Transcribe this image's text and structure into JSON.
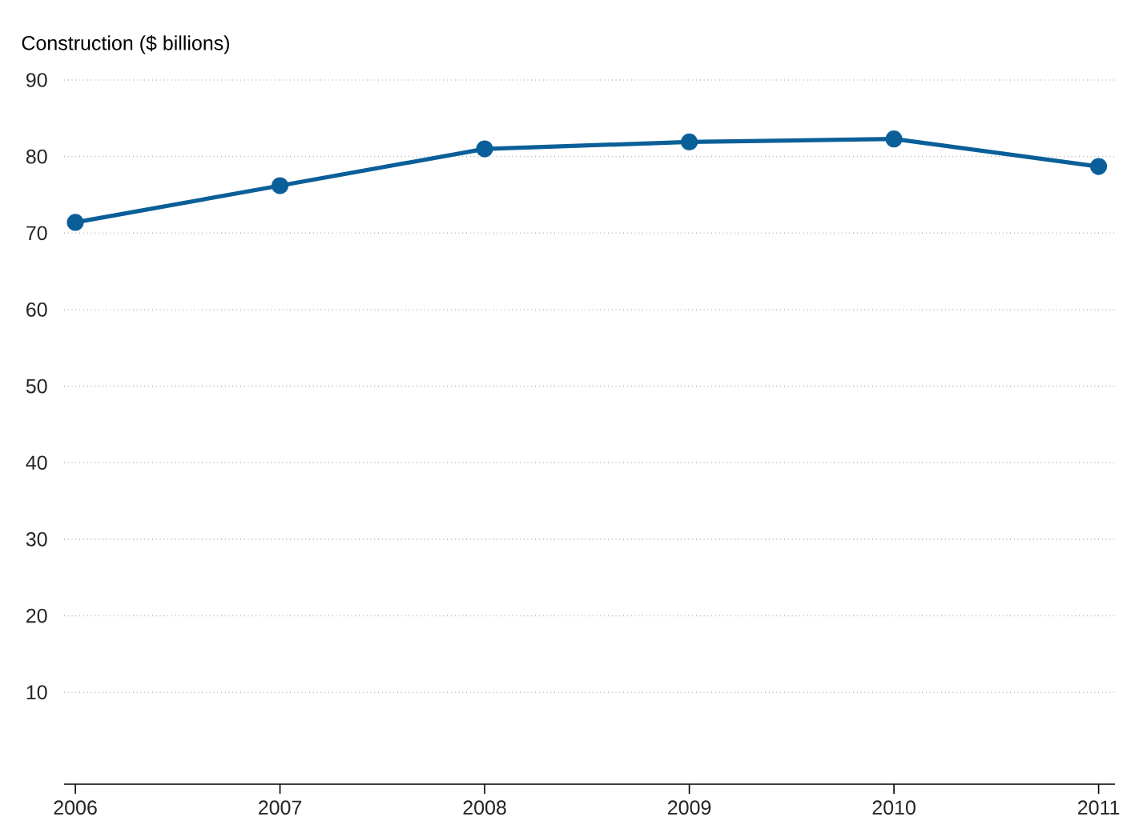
{
  "chart_data": {
    "type": "line",
    "ylabel": "Construction ($ billions)",
    "x": [
      2006,
      2007,
      2008,
      2009,
      2010,
      2011
    ],
    "series": [
      {
        "color": "#0a5f99",
        "values": [
          71.4,
          76.2,
          81.0,
          81.9,
          82.3,
          78.7
        ]
      }
    ],
    "xlim": [
      2005.945,
      2011.08
    ],
    "ylim": [
      -2,
      90
    ],
    "xticks": [
      2006,
      2007,
      2008,
      2009,
      2010,
      2011
    ],
    "yticks": [
      10,
      20,
      30,
      40,
      50,
      60,
      70,
      80,
      90
    ],
    "grid": "y",
    "marker": "circle",
    "line_style": "solid"
  }
}
